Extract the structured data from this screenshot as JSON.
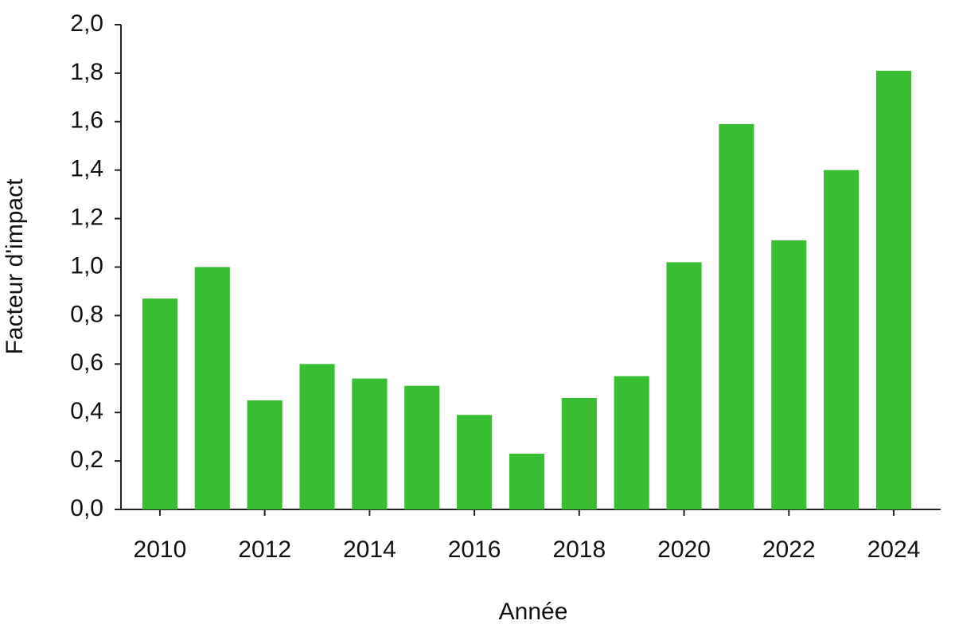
{
  "chart_data": {
    "type": "bar",
    "x_label": "Année",
    "y_label": "Facteur d'impact",
    "categories": [
      "2010",
      null,
      "2012",
      null,
      "2014",
      null,
      "2016",
      null,
      "2018",
      null,
      "2020",
      null,
      "2022",
      null,
      "2024"
    ],
    "values": [
      0.87,
      1.0,
      0.45,
      0.6,
      0.54,
      0.51,
      0.39,
      0.23,
      0.46,
      0.55,
      1.02,
      1.59,
      1.11,
      1.4,
      1.81
    ],
    "color": "#38bd33",
    "ylim": [
      0,
      2
    ],
    "yticks": [
      {
        "value": 0,
        "label": "0,0"
      },
      {
        "value": 0.2,
        "label": "0,2"
      },
      {
        "value": 0.4,
        "label": "0,4"
      },
      {
        "value": 0.6,
        "label": "0,6"
      },
      {
        "value": 0.8,
        "label": "0,8"
      },
      {
        "value": 1,
        "label": "1,0"
      },
      {
        "value": 1.2,
        "label": "1,2"
      },
      {
        "value": 1.4,
        "label": "1,4"
      },
      {
        "value": 1.6,
        "label": "1,6"
      },
      {
        "value": 1.8,
        "label": "1,8"
      },
      {
        "value": 2,
        "label": "2,0"
      }
    ],
    "grid": false
  }
}
